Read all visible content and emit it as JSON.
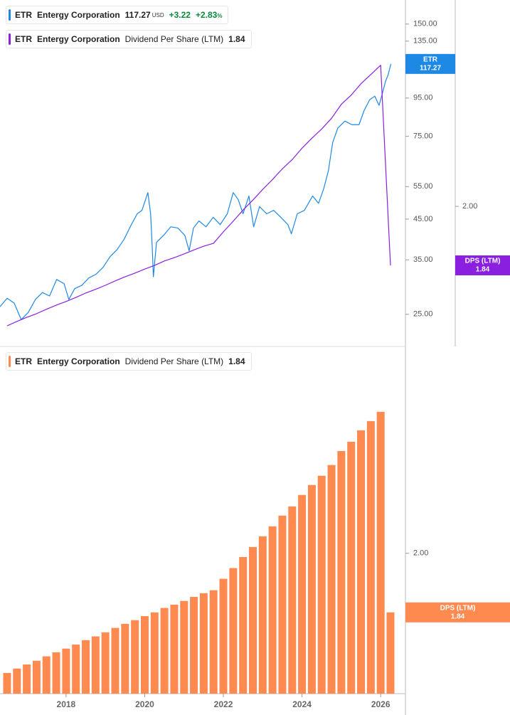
{
  "chart_data": [
    {
      "type": "line",
      "yscale": "log",
      "xlim": [
        2016.32,
        2026.63
      ],
      "ylim": [
        20.5,
        174
      ],
      "yticks": [
        {
          "value": 150,
          "label": "150.00"
        },
        {
          "value": 135,
          "label": "135.00"
        },
        {
          "value": 95,
          "label": "95.00"
        },
        {
          "value": 75,
          "label": "75.00"
        },
        {
          "value": 55,
          "label": "55.00"
        },
        {
          "value": 45,
          "label": "45.00"
        },
        {
          "value": 35,
          "label": "35.00"
        },
        {
          "value": 25,
          "label": "25.00"
        }
      ],
      "y2lim": [
        1.62,
        2.56
      ],
      "y2ticks": [
        {
          "value": 2,
          "label": "2.00"
        }
      ],
      "series": [
        {
          "ticker": "ETR",
          "name": "Entergy Corporation",
          "currency": "USD",
          "change": "+3.22",
          "change_percent": "+2.83",
          "percent_sign": "%",
          "change_color": "#0a8a3a",
          "color": "#1e88e5",
          "x": [
            2016.32,
            2016.5,
            2016.68,
            2016.86,
            2017.04,
            2017.22,
            2017.4,
            2017.58,
            2017.76,
            2017.95,
            2018.07,
            2018.22,
            2018.4,
            2018.58,
            2018.76,
            2018.94,
            2019.12,
            2019.3,
            2019.48,
            2019.66,
            2019.81,
            2019.93,
            2020.08,
            2020.15,
            2020.19,
            2020.22,
            2020.3,
            2020.48,
            2020.66,
            2020.84,
            2021.02,
            2021.13,
            2021.24,
            2021.38,
            2021.56,
            2021.74,
            2021.92,
            2022.1,
            2022.25,
            2022.38,
            2022.5,
            2022.65,
            2022.77,
            2022.92,
            2023.1,
            2023.28,
            2023.46,
            2023.64,
            2023.73,
            2023.88,
            2024.06,
            2024.27,
            2024.42,
            2024.55,
            2024.67,
            2024.78,
            2024.91,
            2025.09,
            2025.27,
            2025.45,
            2025.58,
            2025.72,
            2025.85,
            2025.96,
            2026.05,
            2026.12,
            2026.19,
            2026.26
          ],
          "values": [
            26.2,
            27.6,
            26.8,
            24.2,
            25.3,
            27.4,
            28.6,
            28.0,
            31.0,
            30.2,
            27.4,
            29.3,
            29.9,
            31.3,
            32.0,
            33.4,
            35.7,
            37.3,
            39.8,
            43.5,
            46.5,
            47.5,
            53.0,
            46.5,
            38.1,
            31.5,
            39.0,
            40.7,
            42.9,
            42.6,
            40.7,
            37.0,
            42.6,
            44.5,
            42.9,
            45.5,
            43.5,
            46.5,
            53.0,
            50.7,
            46.5,
            51.9,
            42.9,
            48.6,
            46.5,
            47.5,
            45.5,
            43.5,
            41.1,
            46.5,
            47.5,
            51.9,
            49.6,
            54.2,
            60.6,
            72.2,
            78.9,
            82.4,
            80.6,
            80.6,
            88.0,
            94.0,
            96.1,
            90.8,
            98.3,
            105.0,
            109.7,
            117.27
          ]
        },
        {
          "ticker": "ETR",
          "name": "Entergy Corporation",
          "metric": "Dividend Per Share (LTM)",
          "tag": "DPS (LTM)",
          "color": "#8a1fe0",
          "axis": "y2",
          "x": [
            2016.5,
            2016.75,
            2017,
            2017.25,
            2017.5,
            2017.75,
            2018,
            2018.25,
            2018.5,
            2018.75,
            2019,
            2019.25,
            2019.5,
            2019.75,
            2020,
            2020.25,
            2020.5,
            2020.75,
            2021,
            2021.25,
            2021.5,
            2021.75,
            2022,
            2022.25,
            2022.5,
            2022.75,
            2023,
            2023.25,
            2023.5,
            2023.75,
            2024,
            2024.25,
            2024.5,
            2024.75,
            2025,
            2025.25,
            2025.5,
            2025.75,
            2026,
            2026.25
          ],
          "values": [
            1.676,
            1.688,
            1.699,
            1.709,
            1.721,
            1.732,
            1.742,
            1.753,
            1.765,
            1.775,
            1.786,
            1.798,
            1.809,
            1.819,
            1.83,
            1.84,
            1.852,
            1.861,
            1.871,
            1.882,
            1.892,
            1.9,
            1.931,
            1.96,
            1.99,
            2.017,
            2.046,
            2.073,
            2.102,
            2.127,
            2.158,
            2.185,
            2.21,
            2.239,
            2.277,
            2.302,
            2.333,
            2.358,
            2.383,
            1.84
          ]
        }
      ]
    },
    {
      "type": "bar",
      "xlim": [
        2016.32,
        2026.63
      ],
      "xticks": [
        2018,
        2020,
        2022,
        2024,
        2026
      ],
      "ylim": [
        1.62,
        2.56
      ],
      "yticks": [
        {
          "value": 2,
          "label": "2.00"
        }
      ],
      "series": [
        {
          "ticker": "ETR",
          "name": "Entergy Corporation",
          "metric": "Dividend Per Share (LTM)",
          "tag": "DPS (LTM)",
          "color": "#ff8a50",
          "x": [
            2016.5,
            2016.75,
            2017,
            2017.25,
            2017.5,
            2017.75,
            2018,
            2018.25,
            2018.5,
            2018.75,
            2019,
            2019.25,
            2019.5,
            2019.75,
            2020,
            2020.25,
            2020.5,
            2020.75,
            2021,
            2021.25,
            2021.5,
            2021.75,
            2022,
            2022.25,
            2022.5,
            2022.75,
            2023,
            2023.25,
            2023.5,
            2023.75,
            2024,
            2024.25,
            2024.5,
            2024.75,
            2025,
            2025.25,
            2025.5,
            2025.75,
            2026,
            2026.25
          ],
          "values": [
            1.676,
            1.688,
            1.699,
            1.709,
            1.721,
            1.732,
            1.742,
            1.753,
            1.765,
            1.775,
            1.786,
            1.798,
            1.809,
            1.819,
            1.83,
            1.84,
            1.852,
            1.861,
            1.871,
            1.882,
            1.892,
            1.9,
            1.931,
            1.96,
            1.99,
            2.017,
            2.046,
            2.073,
            2.102,
            2.127,
            2.158,
            2.185,
            2.21,
            2.239,
            2.277,
            2.302,
            2.333,
            2.358,
            2.383,
            1.84
          ]
        }
      ]
    }
  ]
}
